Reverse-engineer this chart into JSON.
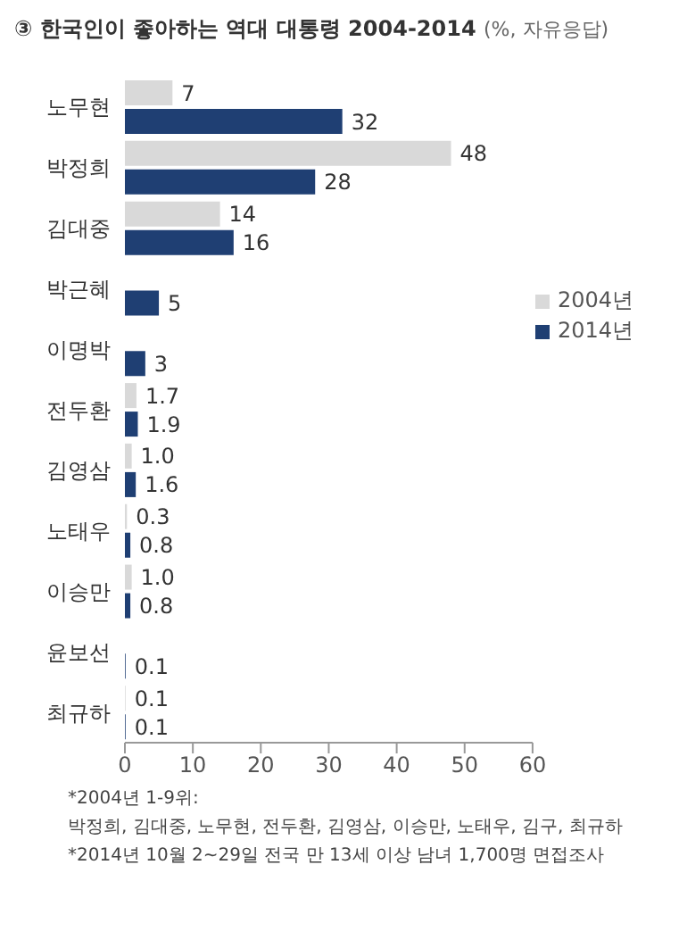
{
  "chart_data": {
    "type": "bar",
    "orientation": "horizontal",
    "title": "③ 한국인이 좋아하는 역대 대통령 2004-2014",
    "subtitle": "(%, 자유응답)",
    "categories": [
      "노무현",
      "박정희",
      "김대중",
      "박근혜",
      "이명박",
      "전두환",
      "김영삼",
      "노태우",
      "이승만",
      "윤보선",
      "최규하"
    ],
    "series": [
      {
        "name": "2004년",
        "color": "#d9d9d9",
        "values": [
          7,
          48,
          14,
          null,
          null,
          1.7,
          1.0,
          0.3,
          1.0,
          null,
          0.1
        ],
        "value_labels": [
          "7",
          "48",
          "14",
          null,
          null,
          "1.7",
          "1.0",
          "0.3",
          "1.0",
          null,
          "0.1"
        ]
      },
      {
        "name": "2014년",
        "color": "#1f3f73",
        "values": [
          32,
          28,
          16,
          5,
          3,
          1.9,
          1.6,
          0.8,
          0.8,
          0.1,
          0.1
        ],
        "value_labels": [
          "32",
          "28",
          "16",
          "5",
          "3",
          "1.9",
          "1.6",
          "0.8",
          "0.8",
          "0.1",
          "0.1"
        ]
      }
    ],
    "xlim": [
      0,
      60
    ],
    "xticks": [
      0,
      10,
      20,
      30,
      40,
      50,
      60
    ],
    "grid": false,
    "legend": "right",
    "annotations": [
      "*2004년 1-9위:",
      "박정희, 김대중, 노무현, 전두환, 김영삼, 이승만, 노태우, 김구, 최규하",
      "*2014년 10월 2~29일 전국 만 13세 이상 남녀 1,700명 면접조사"
    ]
  }
}
